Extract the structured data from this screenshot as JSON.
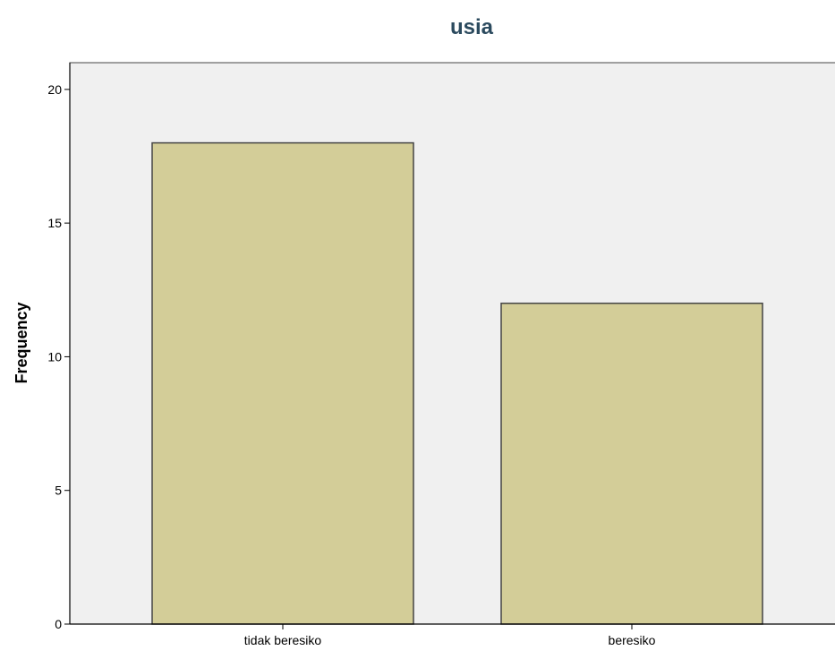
{
  "chart_data": {
    "type": "bar",
    "title": "usia",
    "xlabel": "",
    "ylabel": "Frequency",
    "categories": [
      "tidak beresiko",
      "beresiko"
    ],
    "values": [
      18,
      12
    ],
    "ylim": [
      0,
      21
    ],
    "yticks": [
      0,
      5,
      10,
      15,
      20
    ],
    "grid": false,
    "legend": "none",
    "colors": {
      "bar_fill": "#d3cd98",
      "bar_stroke": "#444444",
      "plot_background": "#f0f0f0",
      "title": "#2b4a5e",
      "axis": "#000000"
    }
  }
}
